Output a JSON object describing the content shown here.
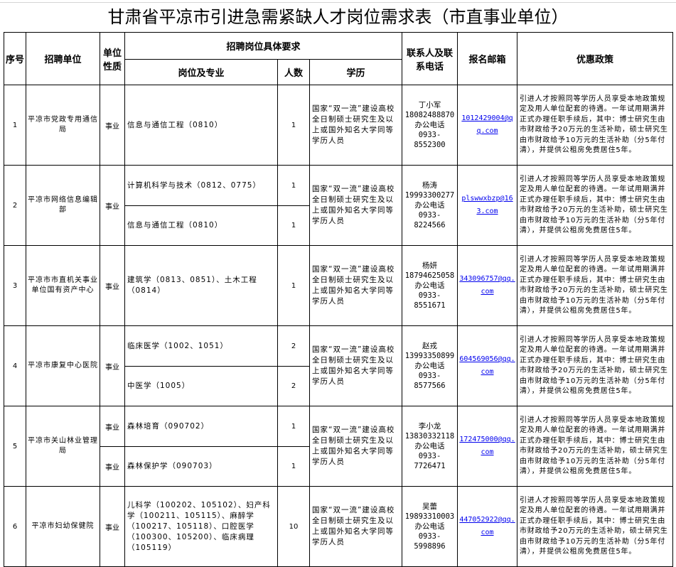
{
  "title": "甘肃省平凉市引进急需紧缺人才岗位需求表（市直事业单位）",
  "headers": {
    "seq": "序号",
    "unit": "招聘单位",
    "nature": "单位性质",
    "req": "招聘岗位具体要求",
    "position": "岗位及专业",
    "count": "人数",
    "education": "学历",
    "contact": "联系人及联系电话",
    "email": "报名邮箱",
    "policy": "优惠政策"
  },
  "education_text": "国家“双一流”建设高校全日制硕士研究生及以上或国外知名大学同等学历人员",
  "policy_text": "引进人才按照同等学历人员享受本地政策规定及用人单位配套的待遇。一年试用期满并正式办理任职手续后，其中：博士研究生由市财政给予20万元的生活补助，硕士研究生由市财政给予10万元的生活补助（分5年付清），并提供公租房免费居住5年。",
  "rows": [
    {
      "seq": "1",
      "unit": "平凉市党政专用通信局",
      "nature": "事业",
      "positions": [
        {
          "name": "信息与通信工程（0810）",
          "count": "1"
        }
      ],
      "contact": {
        "name": "丁小军",
        "mobile": "18082488870",
        "office_label": "办公电话",
        "office": "0933-8552300"
      },
      "email": "1012429004@qq.com"
    },
    {
      "seq": "2",
      "unit": "平凉市网络信息编辑部",
      "nature": "事业",
      "positions": [
        {
          "name": "计算机科学与技术（0812、0775）",
          "count": "1"
        },
        {
          "name": "信息与通信工程（0810）",
          "count": "1"
        }
      ],
      "contact": {
        "name": "杨涛",
        "mobile": "19993300277",
        "office_label": "办公电话",
        "office": "0933-8224566"
      },
      "email": "plswwxbzp@163.com"
    },
    {
      "seq": "3",
      "unit": "平凉市市直机关事业单位国有资产中心",
      "nature": "事业",
      "positions": [
        {
          "name": "建筑学（0813、0851）、土木工程（0814）",
          "count": "1"
        }
      ],
      "contact": {
        "name": "杨妍",
        "mobile": "18794625058",
        "office_label": "办公电话",
        "office": "0933-8551671"
      },
      "email": "343096757@qq.com"
    },
    {
      "seq": "4",
      "unit": "平凉市康复中心医院",
      "nature": "事业",
      "positions": [
        {
          "name": "临床医学（1002、1051）",
          "count": "2"
        },
        {
          "name": "中医学（1005）",
          "count": "2"
        }
      ],
      "contact": {
        "name": "赵戎",
        "mobile": "13993350899",
        "office_label": "办公电话",
        "office": "0933-8577566"
      },
      "email": "604569056@qq.com"
    },
    {
      "seq": "5",
      "unit": "平凉市关山林业管理局",
      "nature": "事业",
      "split_nature": true,
      "positions": [
        {
          "name": "森林培育（090702）",
          "count": "1"
        },
        {
          "name": "森林保护学（090703）",
          "count": "1"
        }
      ],
      "contact": {
        "name": "李小龙",
        "mobile": "13830332118",
        "office_label": "办公电话",
        "office": "0933-7726471"
      },
      "email": "172475000@qq.com"
    },
    {
      "seq": "6",
      "unit": "平凉市妇幼保健院",
      "nature": "事业",
      "positions": [
        {
          "name": "儿科学（100202、105102）、妇产科学（100211、105115）、麻醉学（100217、105118）、口腔医学（100300、105200）、临床病理（105119）",
          "count": "10"
        }
      ],
      "contact": {
        "name": "吴蕾",
        "mobile": "19893310003",
        "office_label": "办公电话",
        "office": "0933-5998896"
      },
      "email": "447052922@qq.com"
    }
  ]
}
